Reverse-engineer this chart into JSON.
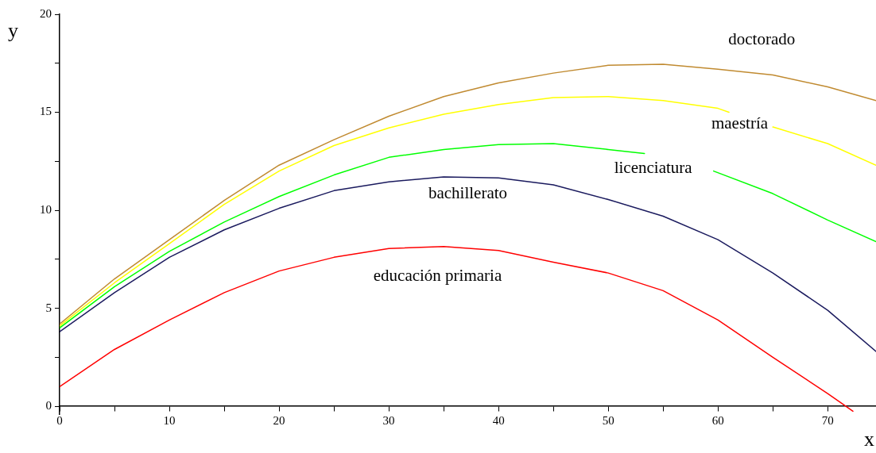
{
  "chart_data": {
    "type": "line",
    "xlabel": "x",
    "ylabel": "y",
    "xlim": [
      0,
      74.4
    ],
    "ylim": [
      -0.4,
      20
    ],
    "xticks": [
      0,
      {
        "value": 5,
        "label": null
      },
      10,
      {
        "value": 15,
        "label": null
      },
      20,
      {
        "value": 25,
        "label": null
      },
      30,
      {
        "value": 35,
        "label": null
      },
      40,
      {
        "value": 45,
        "label": null
      },
      50,
      {
        "value": 55,
        "label": null
      },
      60,
      {
        "value": 65,
        "label": null
      },
      70
    ],
    "yticks": [
      0,
      {
        "value": 2.5,
        "label": null
      },
      5,
      {
        "value": 7.5,
        "label": null
      },
      10,
      {
        "value": 12.5,
        "label": null
      },
      15,
      {
        "value": 17.5,
        "label": null
      },
      20
    ],
    "legend": false,
    "marker": "none",
    "line_style": "solid",
    "series": [
      {
        "name": "doctorado",
        "color": "#c08a30",
        "x": [
          0,
          5,
          10,
          15,
          20,
          25,
          30,
          35,
          40,
          45,
          50,
          55,
          60,
          65,
          70,
          74.4
        ],
        "values": [
          4.2,
          6.5,
          8.5,
          10.5,
          12.3,
          13.6,
          14.8,
          15.8,
          16.5,
          17.0,
          17.4,
          17.45,
          17.2,
          16.9,
          16.3,
          15.6
        ]
      },
      {
        "name": "maestría",
        "color": "#ffff00",
        "x": [
          0,
          5,
          10,
          15,
          20,
          25,
          30,
          35,
          40,
          45,
          50,
          55,
          60,
          61,
          63,
          65,
          70,
          74.4
        ],
        "values": [
          4.1,
          6.3,
          8.3,
          10.3,
          12.0,
          13.3,
          14.2,
          14.9,
          15.4,
          15.75,
          15.8,
          15.6,
          15.2,
          15.0,
          null,
          14.25,
          13.4,
          12.3
        ]
      },
      {
        "name": "licenciatura",
        "color": "#00ff00",
        "x": [
          0,
          5,
          10,
          15,
          20,
          25,
          30,
          35,
          40,
          45,
          50,
          53.3,
          56,
          59.6,
          65,
          70,
          74.4
        ],
        "values": [
          4.0,
          6.1,
          7.9,
          9.4,
          10.7,
          11.8,
          12.7,
          13.1,
          13.35,
          13.4,
          13.1,
          12.9,
          null,
          12.0,
          10.85,
          9.5,
          8.4
        ]
      },
      {
        "name": "bachillerato",
        "color": "#1a1a5e",
        "x": [
          0,
          5,
          10,
          15,
          20,
          25,
          30,
          35,
          40,
          45,
          50,
          55,
          60,
          65,
          70,
          74.4
        ],
        "values": [
          3.8,
          5.8,
          7.6,
          9.0,
          10.1,
          11.0,
          11.45,
          11.7,
          11.65,
          11.3,
          10.55,
          9.7,
          8.5,
          6.8,
          4.9,
          2.8
        ]
      },
      {
        "name": "educación primaria",
        "color": "#ff0000",
        "x": [
          0,
          5,
          10,
          15,
          20,
          25,
          30,
          35,
          40,
          45,
          50,
          55,
          60,
          65,
          70,
          72.3
        ],
        "values": [
          1.0,
          2.9,
          4.4,
          5.8,
          6.9,
          7.6,
          8.05,
          8.15,
          7.95,
          7.35,
          6.8,
          5.9,
          4.4,
          2.5,
          0.65,
          -0.25
        ]
      }
    ]
  }
}
